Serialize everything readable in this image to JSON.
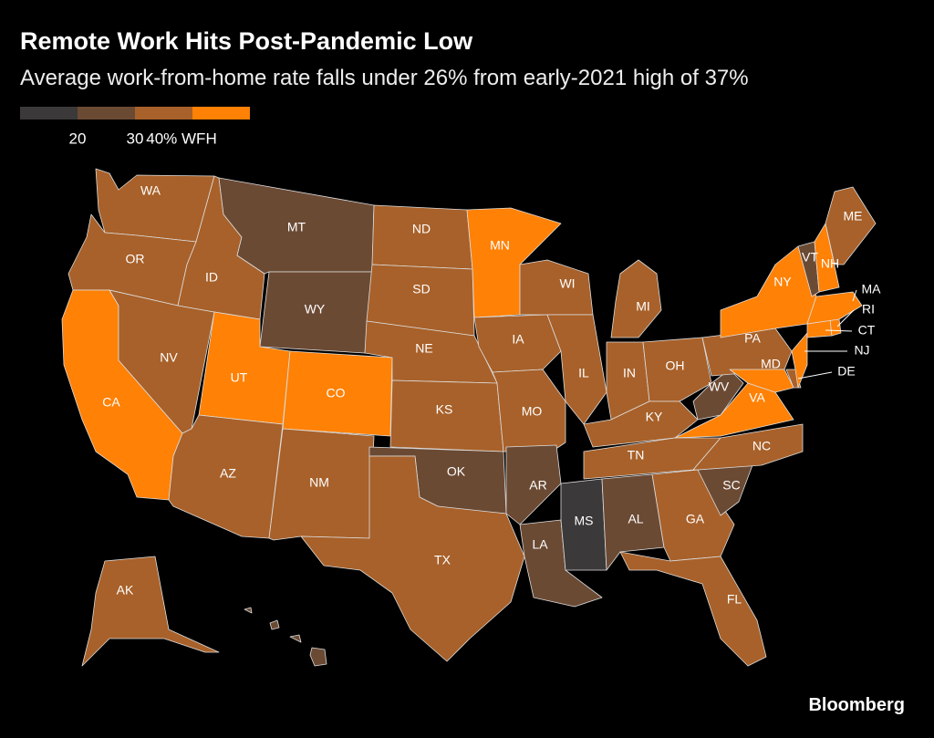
{
  "header": {
    "title": "Remote Work Hits Post-Pandemic Low",
    "subtitle": "Average work-from-home rate falls under 26% from early-2021 high of 37%"
  },
  "legend": {
    "colors": [
      "#3b3939",
      "#6b4a34",
      "#a8612a",
      "#ff8105"
    ],
    "ticks": [
      20,
      30,
      {
        "value": 40,
        "label": "40% WFH"
      }
    ]
  },
  "states": [
    {
      "name": "WA",
      "value": 35
    },
    {
      "name": "OR",
      "value": 34
    },
    {
      "name": "CA",
      "value": 41
    },
    {
      "name": "NV",
      "value": 32
    },
    {
      "name": "ID",
      "value": 31
    },
    {
      "name": "MT",
      "value": 28
    },
    {
      "name": "WY",
      "value": 26
    },
    {
      "name": "UT",
      "value": 41
    },
    {
      "name": "CO",
      "value": 42
    },
    {
      "name": "AZ",
      "value": 34
    },
    {
      "name": "NM",
      "value": 31
    },
    {
      "name": "ND",
      "value": 31
    },
    {
      "name": "SD",
      "value": 31
    },
    {
      "name": "NE",
      "value": 32
    },
    {
      "name": "KS",
      "value": 32
    },
    {
      "name": "OK",
      "value": 27
    },
    {
      "name": "TX",
      "value": 34
    },
    {
      "name": "MN",
      "value": 41
    },
    {
      "name": "IA",
      "value": 32
    },
    {
      "name": "MO",
      "value": 32
    },
    {
      "name": "AR",
      "value": 26
    },
    {
      "name": "LA",
      "value": 27
    },
    {
      "name": "WI",
      "value": 33
    },
    {
      "name": "IL",
      "value": 35
    },
    {
      "name": "MI",
      "value": 34
    },
    {
      "name": "IN",
      "value": 31
    },
    {
      "name": "OH",
      "value": 33
    },
    {
      "name": "KY",
      "value": 31
    },
    {
      "name": "TN",
      "value": 32
    },
    {
      "name": "MS",
      "value": 18
    },
    {
      "name": "AL",
      "value": 27
    },
    {
      "name": "GA",
      "value": 35
    },
    {
      "name": "FL",
      "value": 34
    },
    {
      "name": "SC",
      "value": 28
    },
    {
      "name": "NC",
      "value": 35
    },
    {
      "name": "VA",
      "value": 41
    },
    {
      "name": "WV",
      "value": 26
    },
    {
      "name": "PA",
      "value": 36
    },
    {
      "name": "NY",
      "value": 41
    },
    {
      "name": "MD",
      "value": 43
    },
    {
      "name": "DE",
      "value": 37
    },
    {
      "name": "NJ",
      "value": 42
    },
    {
      "name": "CT",
      "value": 40
    },
    {
      "name": "RI",
      "value": 40
    },
    {
      "name": "MA",
      "value": 43
    },
    {
      "name": "VT",
      "value": 29
    },
    {
      "name": "NH",
      "value": 41
    },
    {
      "name": "ME",
      "value": 33
    },
    {
      "name": "AK",
      "value": 33
    }
  ],
  "footer": {
    "source": "Bloomberg"
  }
}
